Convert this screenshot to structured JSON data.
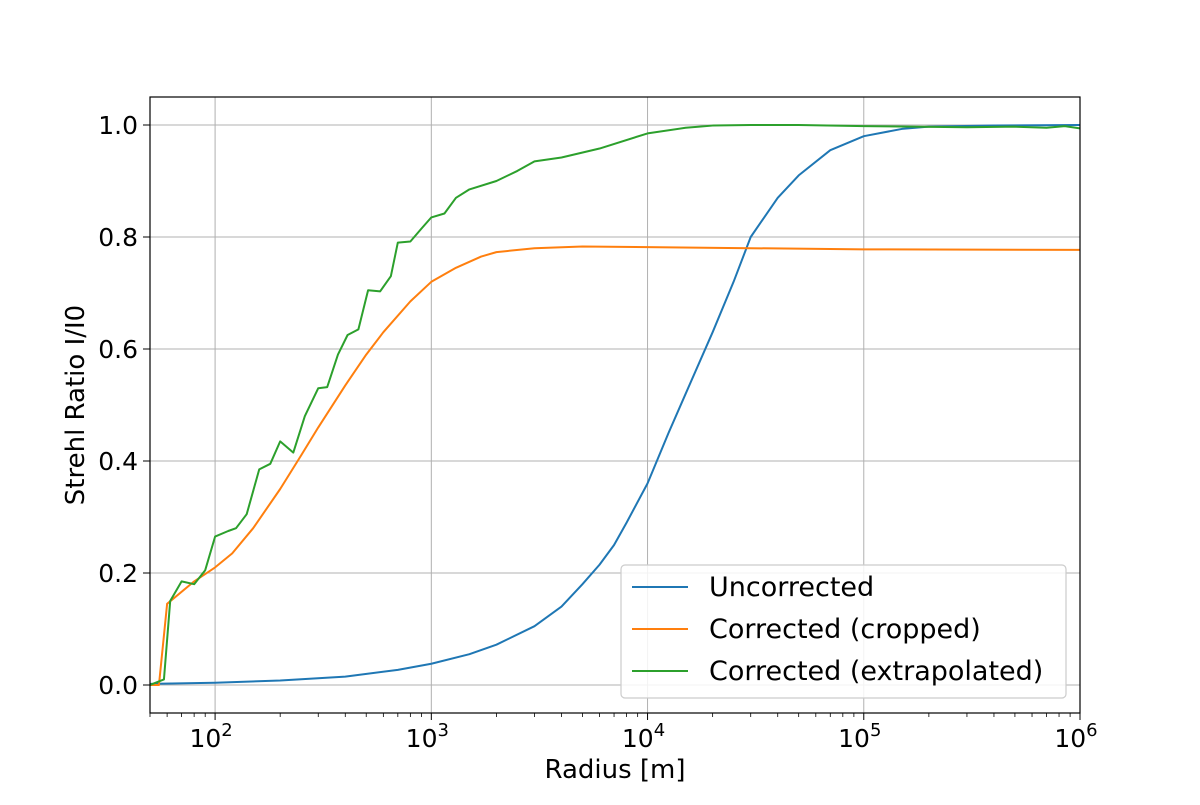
{
  "chart_data": {
    "type": "line",
    "title": "",
    "xlabel": "Radius [m]",
    "ylabel": "Strehl Ratio I/I0",
    "x_scale": "log",
    "xlim": [
      50,
      1000000
    ],
    "ylim": [
      -0.05,
      1.05
    ],
    "grid": true,
    "legend_position": "lower-right",
    "x_ticks": [
      {
        "base": "10",
        "exp": "2"
      },
      {
        "base": "10",
        "exp": "3"
      },
      {
        "base": "10",
        "exp": "4"
      },
      {
        "base": "10",
        "exp": "5"
      },
      {
        "base": "10",
        "exp": "6"
      }
    ],
    "y_ticks": [
      "0.0",
      "0.2",
      "0.4",
      "0.6",
      "0.8",
      "1.0"
    ],
    "series": [
      {
        "name": "Uncorrected",
        "color": "#1f77b4",
        "points": [
          [
            50,
            0.002
          ],
          [
            100,
            0.004
          ],
          [
            200,
            0.008
          ],
          [
            400,
            0.015
          ],
          [
            700,
            0.027
          ],
          [
            1000,
            0.038
          ],
          [
            1500,
            0.055
          ],
          [
            2000,
            0.072
          ],
          [
            3000,
            0.105
          ],
          [
            4000,
            0.14
          ],
          [
            5000,
            0.18
          ],
          [
            6000,
            0.215
          ],
          [
            7000,
            0.25
          ],
          [
            8000,
            0.29
          ],
          [
            10000,
            0.36
          ],
          [
            12500,
            0.45
          ],
          [
            15000,
            0.52
          ],
          [
            20000,
            0.63
          ],
          [
            25000,
            0.72
          ],
          [
            30000,
            0.8
          ],
          [
            40000,
            0.87
          ],
          [
            50000,
            0.91
          ],
          [
            70000,
            0.955
          ],
          [
            100000,
            0.98
          ],
          [
            150000,
            0.993
          ],
          [
            200000,
            0.997
          ],
          [
            400000,
            0.999
          ],
          [
            1000000,
            1.0
          ]
        ]
      },
      {
        "name": "Corrected (cropped)",
        "color": "#ff7f0e",
        "points": [
          [
            50,
            0.0
          ],
          [
            55,
            0.0
          ],
          [
            60,
            0.145
          ],
          [
            80,
            0.185
          ],
          [
            100,
            0.21
          ],
          [
            120,
            0.235
          ],
          [
            150,
            0.28
          ],
          [
            200,
            0.35
          ],
          [
            250,
            0.41
          ],
          [
            300,
            0.46
          ],
          [
            400,
            0.535
          ],
          [
            500,
            0.59
          ],
          [
            600,
            0.63
          ],
          [
            800,
            0.685
          ],
          [
            1000,
            0.72
          ],
          [
            1300,
            0.745
          ],
          [
            1700,
            0.765
          ],
          [
            2000,
            0.773
          ],
          [
            3000,
            0.78
          ],
          [
            5000,
            0.783
          ],
          [
            10000,
            0.782
          ],
          [
            30000,
            0.78
          ],
          [
            100000,
            0.778
          ],
          [
            1000000,
            0.777
          ]
        ]
      },
      {
        "name": "Corrected (extrapolated)",
        "color": "#2ca02c",
        "points": [
          [
            50,
            0.0
          ],
          [
            58,
            0.01
          ],
          [
            62,
            0.15
          ],
          [
            70,
            0.185
          ],
          [
            80,
            0.18
          ],
          [
            90,
            0.205
          ],
          [
            100,
            0.265
          ],
          [
            115,
            0.275
          ],
          [
            125,
            0.28
          ],
          [
            140,
            0.305
          ],
          [
            160,
            0.385
          ],
          [
            180,
            0.395
          ],
          [
            200,
            0.435
          ],
          [
            230,
            0.415
          ],
          [
            260,
            0.48
          ],
          [
            300,
            0.53
          ],
          [
            330,
            0.532
          ],
          [
            370,
            0.59
          ],
          [
            410,
            0.625
          ],
          [
            460,
            0.635
          ],
          [
            510,
            0.705
          ],
          [
            580,
            0.703
          ],
          [
            650,
            0.73
          ],
          [
            700,
            0.79
          ],
          [
            800,
            0.792
          ],
          [
            900,
            0.815
          ],
          [
            1000,
            0.835
          ],
          [
            1150,
            0.842
          ],
          [
            1300,
            0.87
          ],
          [
            1500,
            0.885
          ],
          [
            2000,
            0.9
          ],
          [
            2500,
            0.918
          ],
          [
            3000,
            0.935
          ],
          [
            4000,
            0.942
          ],
          [
            6000,
            0.958
          ],
          [
            10000,
            0.985
          ],
          [
            15000,
            0.995
          ],
          [
            20000,
            0.999
          ],
          [
            30000,
            1.0
          ],
          [
            50000,
            1.0
          ],
          [
            100000,
            0.998
          ],
          [
            300000,
            0.996
          ],
          [
            500000,
            0.997
          ],
          [
            700000,
            0.995
          ],
          [
            850000,
            0.998
          ],
          [
            1000000,
            0.994
          ]
        ]
      }
    ]
  }
}
